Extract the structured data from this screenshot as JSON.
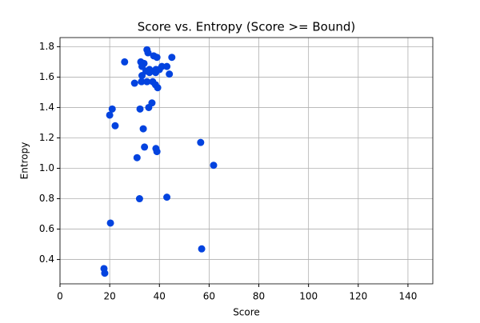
{
  "chart_data": {
    "type": "scatter",
    "title": "Score vs. Entropy (Score >= Bound)",
    "xlabel": "Score",
    "ylabel": "Entropy",
    "color": "#0343df",
    "grid": true,
    "xlim": [
      0,
      150
    ],
    "ylim": [
      0.24,
      1.86
    ],
    "xticks": [
      0,
      20,
      40,
      60,
      80,
      100,
      120,
      140
    ],
    "yticks": [
      0.4,
      0.6,
      0.8,
      {
        "value": 1.0,
        "label": "1.0"
      },
      1.2,
      1.4,
      1.6,
      1.8
    ],
    "x": [
      26,
      35,
      35.4,
      32.5,
      33.8,
      33,
      37.7,
      39,
      45,
      36,
      34.6,
      38.6,
      40,
      41,
      43,
      44,
      33,
      30,
      32.8,
      35,
      37.3,
      38.4,
      39.3,
      37,
      35.7,
      32.2,
      21,
      20,
      22.2,
      33.5,
      34,
      38.6,
      39,
      31,
      56.6,
      61.8,
      32,
      43,
      20.3,
      57,
      17.7,
      18,
      38.5,
      36
    ],
    "y": [
      1.7,
      1.78,
      1.76,
      1.7,
      1.69,
      1.67,
      1.74,
      1.73,
      1.73,
      1.65,
      1.64,
      1.65,
      1.65,
      1.67,
      1.67,
      1.62,
      1.61,
      1.56,
      1.57,
      1.57,
      1.57,
      1.55,
      1.53,
      1.43,
      1.4,
      1.39,
      1.39,
      1.35,
      1.28,
      1.26,
      1.14,
      1.13,
      1.11,
      1.07,
      1.17,
      1.02,
      0.8,
      0.81,
      0.64,
      0.47,
      0.34,
      0.31,
      1.63,
      1.63
    ]
  }
}
